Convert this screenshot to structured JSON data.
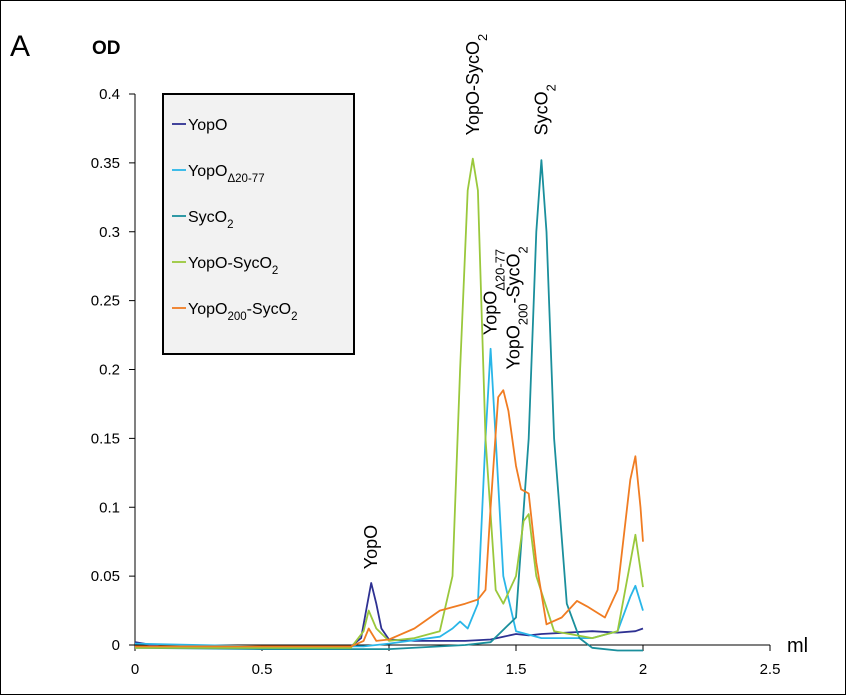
{
  "panel_letter": "A",
  "chart_data": {
    "type": "line",
    "y_unit_label": "OD",
    "x_unit_label": "ml",
    "xlim": [
      0,
      2.5
    ],
    "ylim": [
      0,
      0.4
    ],
    "x_ticks": [
      "0",
      "0.5",
      "1",
      "1.5",
      "2",
      "2.5"
    ],
    "y_ticks": [
      "0",
      "0.05",
      "0.1",
      "0.15",
      "0.2",
      "0.25",
      "0.3",
      "0.35",
      "0.4"
    ],
    "grid": false,
    "legend_position": "top-left",
    "series": [
      {
        "name": "YopO",
        "name_base": "YopO",
        "name_sub": "",
        "name_suffix": "",
        "name_sub2": "",
        "color": "#2e3192",
        "x": [
          0,
          0.1,
          0.5,
          0.85,
          0.89,
          0.91,
          0.93,
          0.95,
          0.97,
          1.0,
          1.1,
          1.2,
          1.3,
          1.4,
          1.45,
          1.5,
          1.55,
          1.6,
          1.7,
          1.8,
          1.9,
          1.97,
          2.0
        ],
        "y": [
          0.002,
          -0.001,
          -0.001,
          -0.001,
          0.005,
          0.025,
          0.045,
          0.03,
          0.012,
          0.004,
          0.003,
          0.003,
          0.003,
          0.004,
          0.006,
          0.008,
          0.007,
          0.008,
          0.009,
          0.01,
          0.009,
          0.01,
          0.012
        ]
      },
      {
        "name": "YopOΔ20-77",
        "name_base": "YopO",
        "name_sub": "Δ20-77",
        "name_suffix": "",
        "name_sub2": "",
        "color": "#29b6e8",
        "x": [
          0,
          0.5,
          0.9,
          1.0,
          1.2,
          1.25,
          1.28,
          1.31,
          1.35,
          1.38,
          1.4,
          1.42,
          1.45,
          1.5,
          1.6,
          1.8,
          1.9,
          1.95,
          1.97,
          2.0
        ],
        "y": [
          0.001,
          -0.001,
          -0.001,
          0.001,
          0.006,
          0.012,
          0.017,
          0.012,
          0.03,
          0.15,
          0.215,
          0.15,
          0.05,
          0.01,
          0.005,
          0.005,
          0.01,
          0.035,
          0.043,
          0.025
        ]
      },
      {
        "name": "SycO2",
        "name_base": "SycO",
        "name_sub": "2",
        "name_suffix": "",
        "name_sub2": "",
        "color": "#1a8f9c",
        "x": [
          0,
          0.5,
          1.0,
          1.3,
          1.4,
          1.5,
          1.55,
          1.58,
          1.6,
          1.62,
          1.65,
          1.7,
          1.75,
          1.8,
          1.9,
          2.0
        ],
        "y": [
          -0.002,
          -0.003,
          -0.003,
          0.0,
          0.002,
          0.02,
          0.15,
          0.3,
          0.352,
          0.3,
          0.15,
          0.03,
          0.005,
          -0.002,
          -0.004,
          -0.004
        ]
      },
      {
        "name": "YopO-SycO2",
        "name_base": "YopO-SycO",
        "name_sub": "2",
        "name_suffix": "",
        "name_sub2": "",
        "color": "#9ac83c",
        "x": [
          0,
          0.5,
          0.85,
          0.9,
          0.92,
          0.95,
          1.0,
          1.1,
          1.2,
          1.25,
          1.28,
          1.31,
          1.33,
          1.35,
          1.38,
          1.42,
          1.45,
          1.5,
          1.53,
          1.55,
          1.58,
          1.65,
          1.8,
          1.9,
          1.95,
          1.97,
          2.0
        ],
        "y": [
          -0.002,
          -0.002,
          -0.002,
          0.01,
          0.025,
          0.012,
          0.003,
          0.005,
          0.01,
          0.05,
          0.2,
          0.33,
          0.353,
          0.33,
          0.15,
          0.04,
          0.03,
          0.05,
          0.09,
          0.095,
          0.05,
          0.01,
          0.005,
          0.01,
          0.06,
          0.08,
          0.042
        ]
      },
      {
        "name": "YopO200-SycO2",
        "name_base": "YopO",
        "name_sub": "200",
        "name_suffix": "-SycO",
        "name_sub2": "2",
        "color": "#f07c22",
        "x": [
          0,
          0.5,
          0.85,
          0.9,
          0.92,
          0.95,
          1.0,
          1.1,
          1.2,
          1.3,
          1.35,
          1.38,
          1.4,
          1.43,
          1.45,
          1.47,
          1.5,
          1.52,
          1.55,
          1.58,
          1.62,
          1.68,
          1.74,
          1.78,
          1.85,
          1.9,
          1.95,
          1.97,
          1.99,
          2.0
        ],
        "y": [
          -0.001,
          -0.001,
          -0.001,
          0.003,
          0.012,
          0.003,
          0.004,
          0.012,
          0.025,
          0.03,
          0.033,
          0.04,
          0.1,
          0.18,
          0.185,
          0.17,
          0.13,
          0.113,
          0.11,
          0.06,
          0.015,
          0.02,
          0.032,
          0.028,
          0.02,
          0.04,
          0.12,
          0.137,
          0.1,
          0.075
        ]
      }
    ],
    "annotations": [
      {
        "base": "YopO",
        "sub": "",
        "suffix": "",
        "sub2": "",
        "x": 0.93,
        "y": 0.055
      },
      {
        "base": "YopO-SycO",
        "sub": "2",
        "suffix": "",
        "sub2": "",
        "x": 1.33,
        "y": 0.37
      },
      {
        "base": "SycO",
        "sub": "2",
        "suffix": "",
        "sub2": "",
        "x": 1.6,
        "y": 0.37
      },
      {
        "base": "YopO",
        "sub": "Δ20-77",
        "suffix": "",
        "sub2": "",
        "x": 1.4,
        "y": 0.225
      },
      {
        "base": "YopO",
        "sub": "200",
        "suffix": "-SycO",
        "sub2": "2",
        "x": 1.49,
        "y": 0.2
      }
    ]
  }
}
